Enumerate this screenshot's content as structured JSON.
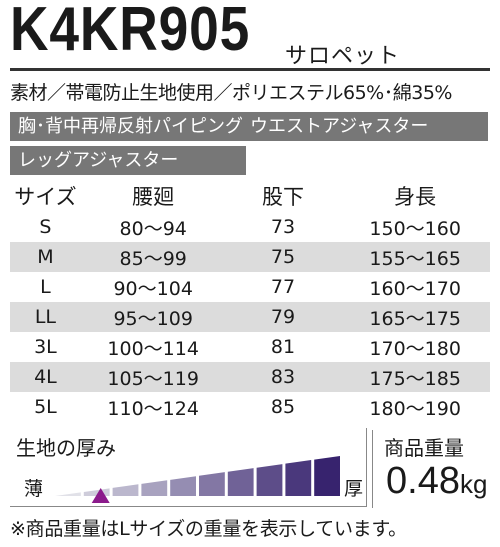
{
  "header": {
    "model": "K4KR905",
    "product_name": "サロペット"
  },
  "material": "素材／帯電防止生地使用／ポリエステル65%･綿35%",
  "features": [
    "胸･背中再帰反射パイピング",
    "ウエストアジャスター",
    "レッグアジャスター"
  ],
  "size_table": {
    "headers": [
      "サイズ",
      "腰廻",
      "股下",
      "身長"
    ],
    "rows": [
      [
        "S",
        "80〜94",
        "73",
        "150〜160"
      ],
      [
        "M",
        "85〜99",
        "75",
        "155〜165"
      ],
      [
        "L",
        "90〜104",
        "77",
        "160〜170"
      ],
      [
        "LL",
        "95〜109",
        "79",
        "165〜175"
      ],
      [
        "3L",
        "100〜114",
        "81",
        "170〜180"
      ],
      [
        "4L",
        "105〜119",
        "83",
        "175〜185"
      ],
      [
        "5L",
        "110〜124",
        "85",
        "180〜190"
      ]
    ]
  },
  "fabric_thickness": {
    "title": "生地の厚み",
    "thin_label": "薄",
    "thick_label": "厚",
    "level_index": 1,
    "level_count": 10,
    "marker_color": "#8b1a8b"
  },
  "weight": {
    "title": "商品重量",
    "value": "0.48",
    "unit": "kg"
  },
  "footnote": "※商品重量はLサイズの重量を表示しています。"
}
